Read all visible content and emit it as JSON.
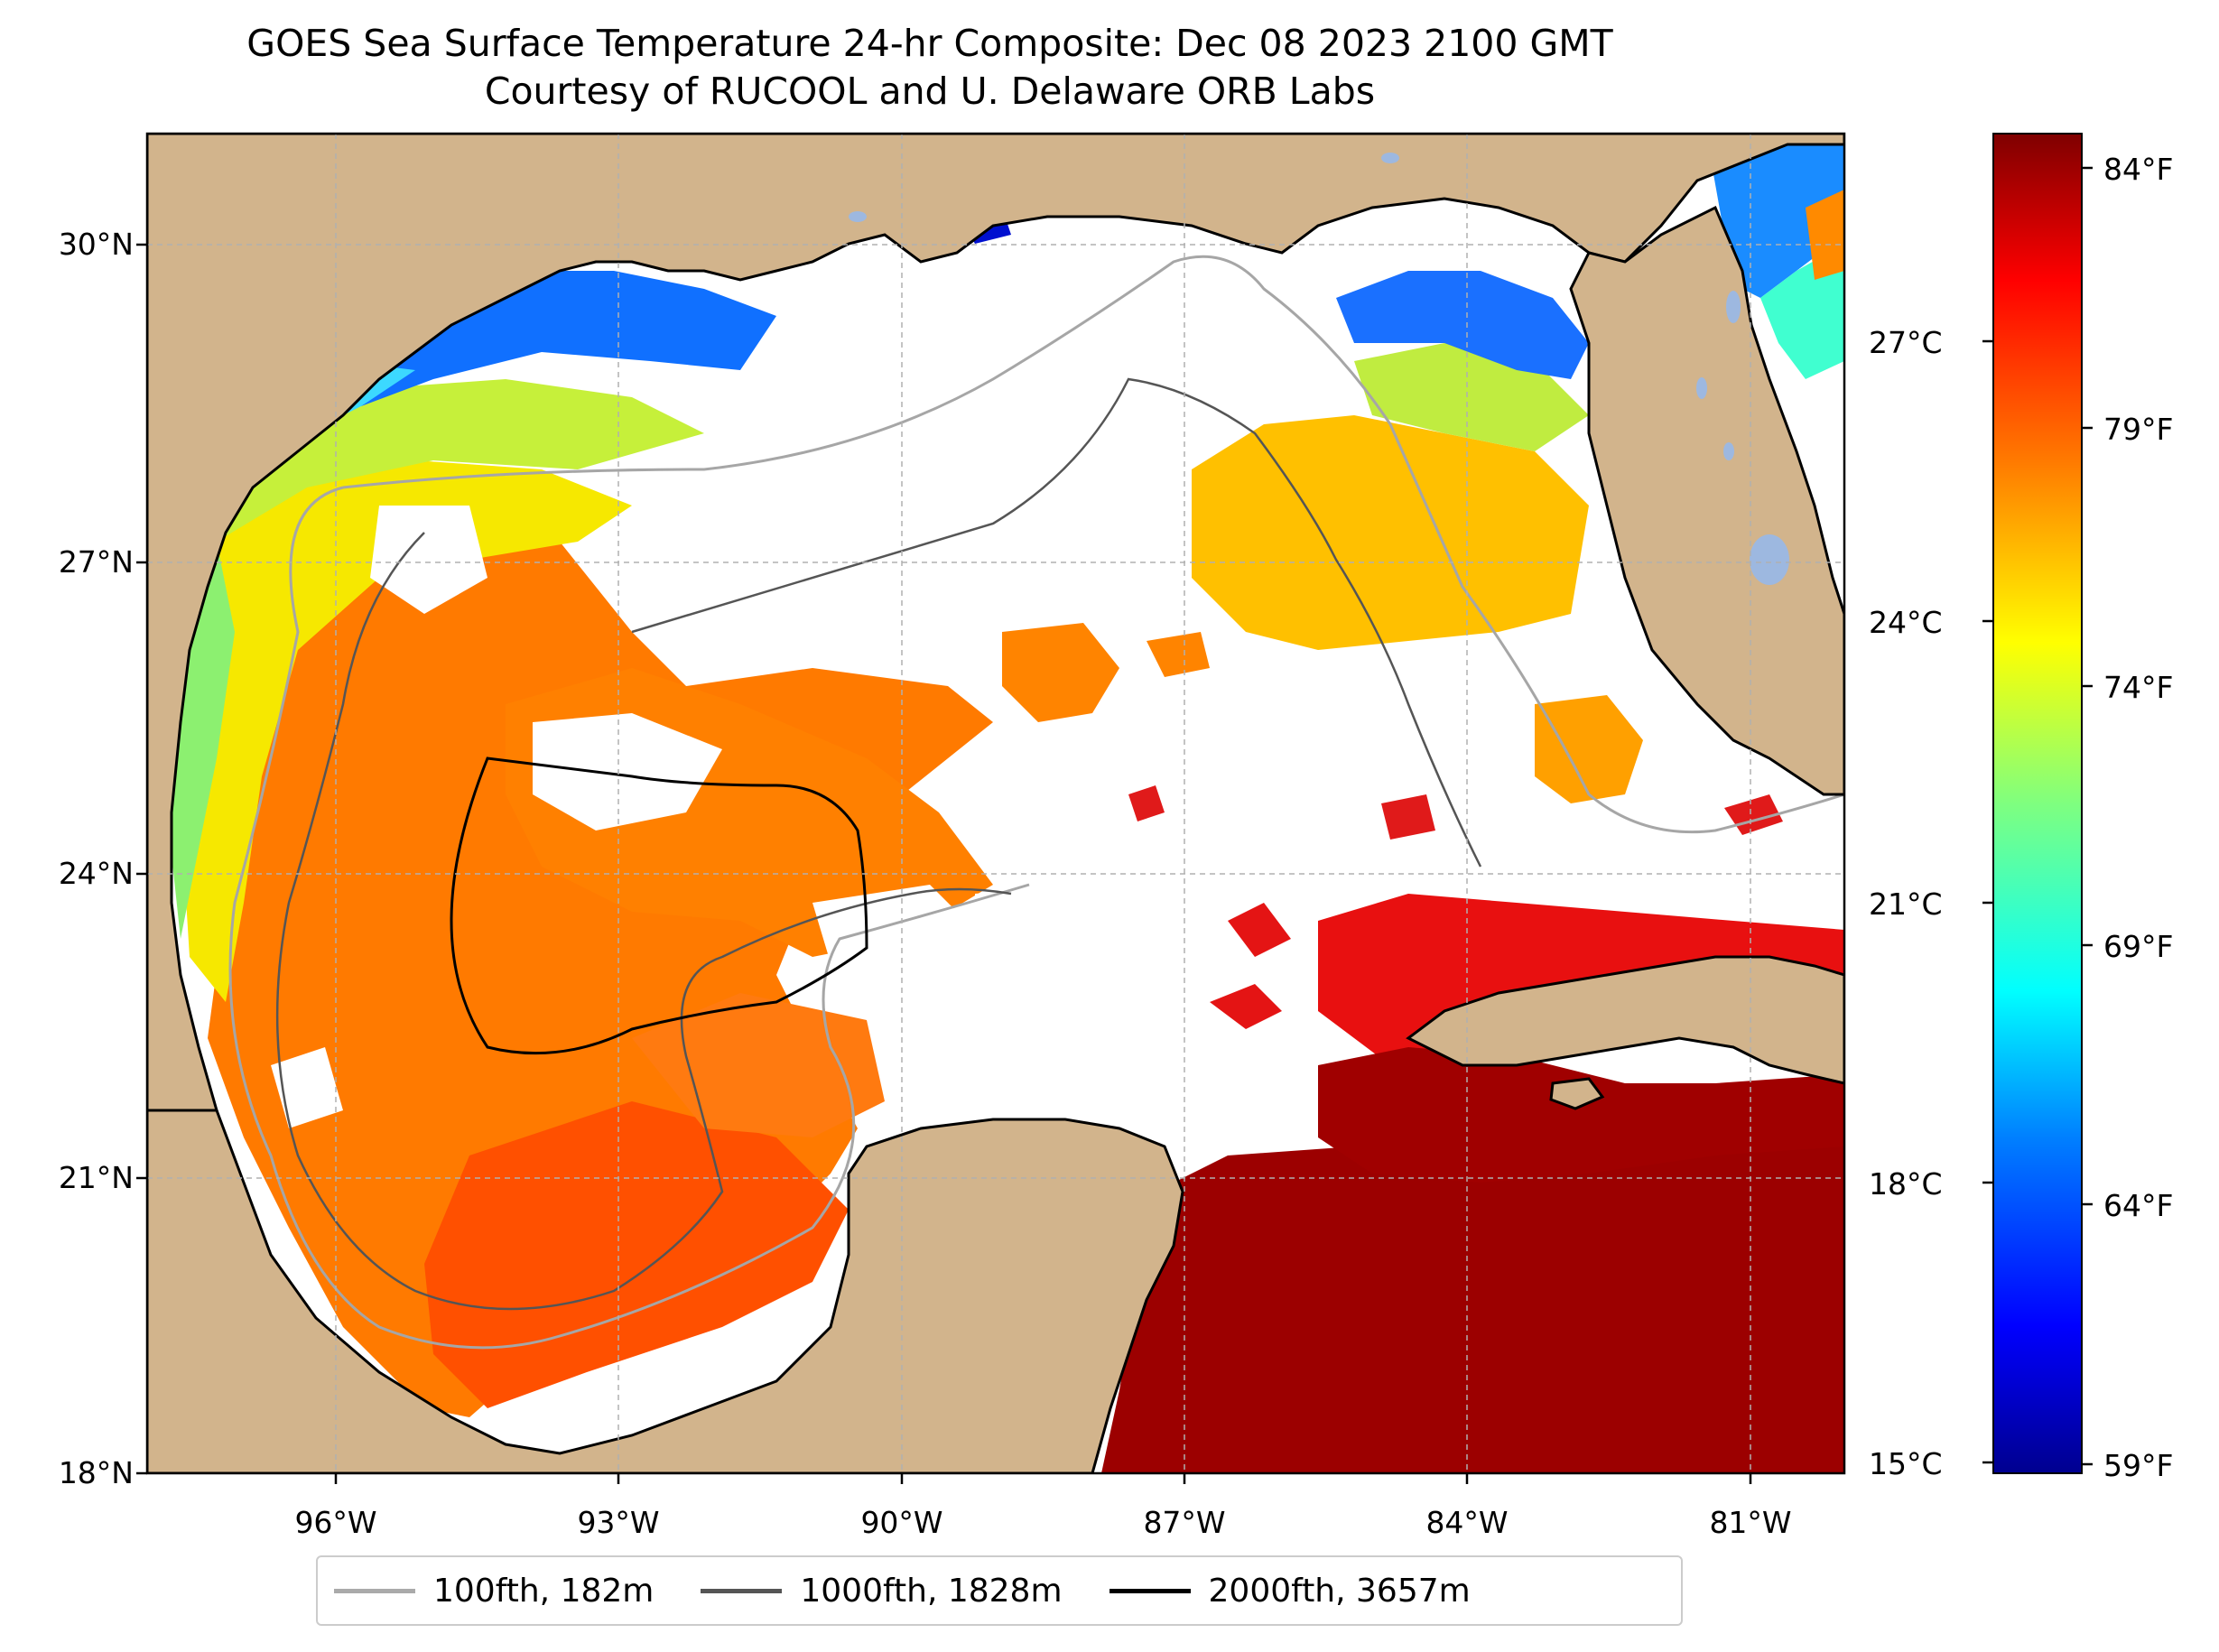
{
  "title": {
    "line1": "GOES Sea Surface Temperature 24-hr Composite: Dec 08 2023 2100 GMT",
    "line2": "Courtesy of RUCOOL and U. Delaware ORB Labs"
  },
  "map": {
    "lat_labels": [
      "30°N",
      "27°N",
      "24°N",
      "21°N",
      "18°N"
    ],
    "lon_labels": [
      "96°W",
      "93°W",
      "90°W",
      "87°W",
      "84°W",
      "81°W"
    ],
    "gridlines": true,
    "colors": {
      "land": "#d2b48c",
      "ocean_no_data": "#ffffff",
      "lakes": "#9db8e0"
    }
  },
  "colorbar": {
    "celsius_labels": [
      "27°C",
      "24°C",
      "21°C",
      "18°C",
      "15°C"
    ],
    "fahrenheit_labels": [
      "84°F",
      "79°F",
      "74°F",
      "69°F",
      "64°F",
      "59°F"
    ],
    "colormap": "jet",
    "stops": [
      "#00008f",
      "#0000ff",
      "#007fff",
      "#00ffff",
      "#7fff7f",
      "#ffff00",
      "#ff7f00",
      "#ff0000",
      "#7f0000"
    ]
  },
  "legend": {
    "items": [
      {
        "label": "100fth, 182m",
        "color": "#aaaaaa"
      },
      {
        "label": "1000fth, 1828m",
        "color": "#555555"
      },
      {
        "label": "2000fth, 3657m",
        "color": "#000000"
      }
    ]
  }
}
